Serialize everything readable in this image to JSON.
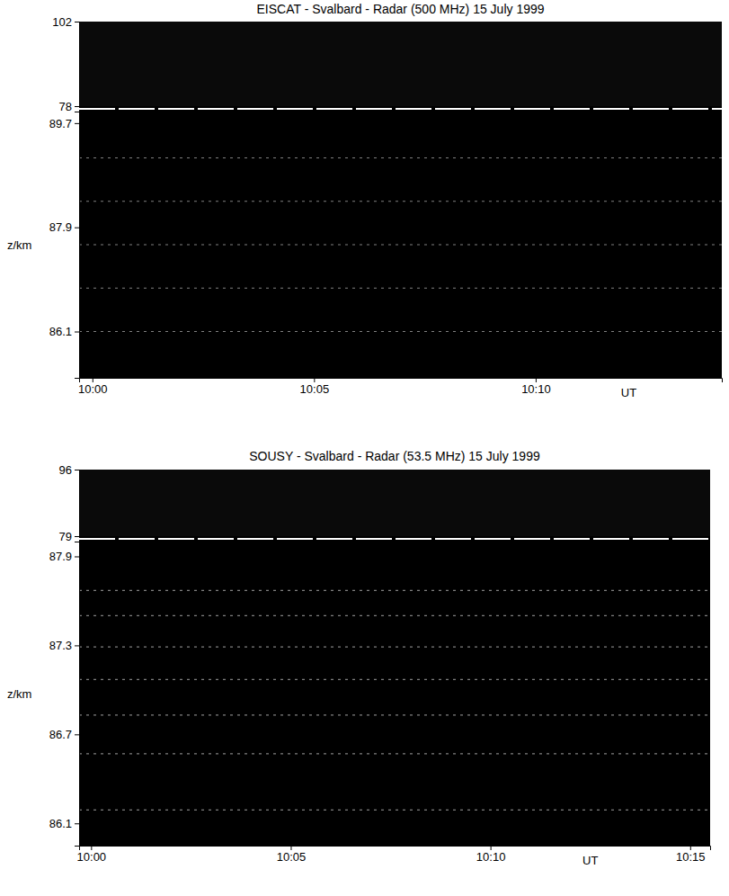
{
  "chart_data": [
    {
      "type": "range_time_intensity",
      "title": "EISCAT - Svalbard - Radar (500 MHz)  15 July 1999",
      "ylabel": "z/km",
      "xlabel": "UT",
      "xlim": [
        -0.3,
        14.2
      ],
      "xticks": [
        {
          "value": 0,
          "label": "10:00"
        },
        {
          "value": 5,
          "label": "10:05"
        },
        {
          "value": 10,
          "label": "10:10"
        }
      ],
      "overview": {
        "ylim": [
          78,
          102
        ],
        "yticks": [
          78,
          102
        ]
      },
      "ylim": [
        85.3,
        89.9
      ],
      "yticks": [
        86.1,
        87.9,
        89.7
      ],
      "echo_layers": [
        89.1,
        88.35,
        87.6,
        86.85,
        86.1
      ]
    },
    {
      "type": "range_time_intensity",
      "title": "SOUSY - Svalbard - Radar (53.5 MHz)  15 July 1999",
      "ylabel": "z/km",
      "xlabel": "UT",
      "xlim": [
        -0.3,
        15.5
      ],
      "xticks": [
        {
          "value": 0,
          "label": "10:00"
        },
        {
          "value": 5,
          "label": "10:05"
        },
        {
          "value": 10,
          "label": "10:10"
        },
        {
          "value": 15,
          "label": "10:15"
        }
      ],
      "overview": {
        "ylim": [
          79,
          96
        ],
        "yticks": [
          79,
          96
        ]
      },
      "ylim": [
        85.95,
        88.0
      ],
      "yticks": [
        86.1,
        86.7,
        87.3,
        87.9
      ],
      "echo_layers": [
        87.67,
        87.5,
        87.29,
        87.07,
        86.83,
        86.57,
        86.19
      ]
    }
  ]
}
